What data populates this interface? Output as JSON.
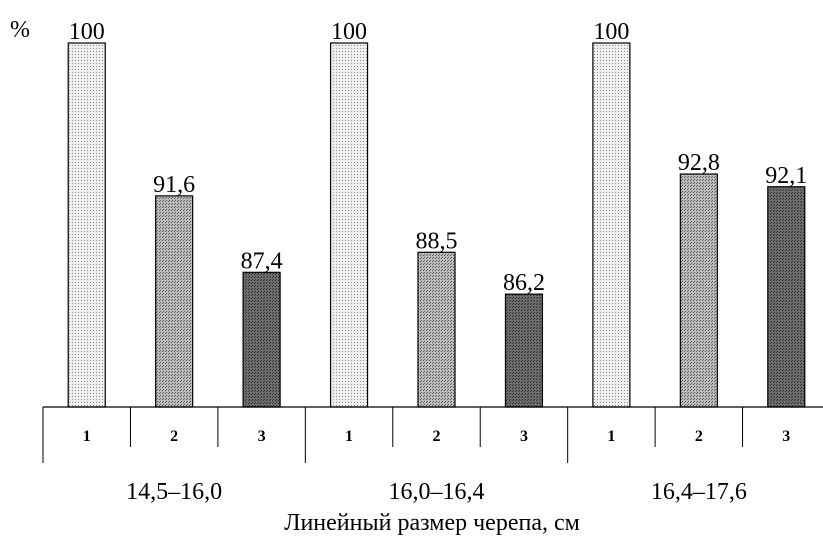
{
  "chart_data": {
    "type": "bar",
    "y_unit_label": "%",
    "xlabel": "Линейный размер черепа, см",
    "ylim": [
      80,
      100
    ],
    "groups": [
      {
        "label": "14,5–16,0",
        "bars": [
          {
            "label": "1",
            "value": 100,
            "value_text": "100"
          },
          {
            "label": "2",
            "value": 91.6,
            "value_text": "91,6"
          },
          {
            "label": "3",
            "value": 87.4,
            "value_text": "87,4"
          }
        ]
      },
      {
        "label": "16,0–16,4",
        "bars": [
          {
            "label": "1",
            "value": 100,
            "value_text": "100"
          },
          {
            "label": "2",
            "value": 88.5,
            "value_text": "88,5"
          },
          {
            "label": "3",
            "value": 86.2,
            "value_text": "86,2"
          }
        ]
      },
      {
        "label": "16,4–17,6",
        "bars": [
          {
            "label": "1",
            "value": 100,
            "value_text": "100"
          },
          {
            "label": "2",
            "value": 92.8,
            "value_text": "92,8"
          },
          {
            "label": "3",
            "value": 92.1,
            "value_text": "92,1"
          }
        ]
      }
    ],
    "bar_styles": {
      "1": {
        "fill": "#efefef",
        "dot": "#8a8a8a"
      },
      "2": {
        "fill": "#bcbcbc",
        "dot": "#5a5a5a"
      },
      "3": {
        "fill": "#6e6e6e",
        "dot": "#303030"
      }
    },
    "grid": false
  }
}
